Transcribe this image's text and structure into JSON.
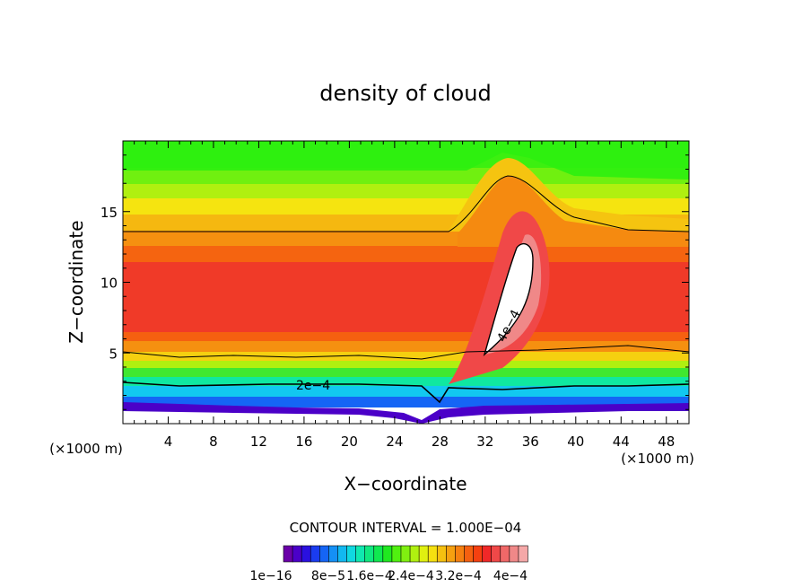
{
  "chart_data": {
    "type": "heatmap",
    "title": "density of cloud",
    "xlabel": "X−coordinate",
    "ylabel": "Z−coordinate",
    "x_unit": "(×1000 m)",
    "y_unit": "(×1000 m)",
    "xlim": [
      0,
      50
    ],
    "ylim": [
      0,
      20
    ],
    "x_ticks": [
      4,
      8,
      12,
      16,
      20,
      24,
      28,
      32,
      36,
      40,
      44,
      48
    ],
    "y_ticks": [
      5,
      10,
      15
    ],
    "contour_interval_text": "CONTOUR INTERVAL = 1.000E−04",
    "contour_labels": [
      {
        "text": "2e−4",
        "x": 17,
        "z": 2.8
      },
      {
        "text": "4e−4",
        "x": 33.5,
        "z": 6.8
      }
    ],
    "colorbar": {
      "min": 1e-16,
      "max": 0.0004,
      "tick_labels": [
        "1e−16",
        "8e−5",
        "1.6e−4",
        "2.4e−4",
        "3.2e−4",
        "4e−4"
      ],
      "colors": [
        "#6a00a8",
        "#4b00c8",
        "#2a10e0",
        "#1a3cf0",
        "#1565f5",
        "#1590f5",
        "#12b8f0",
        "#10d8e0",
        "#10e8b0",
        "#10e880",
        "#10e850",
        "#20e820",
        "#50f010",
        "#80f010",
        "#b0f010",
        "#e0f010",
        "#f5e010",
        "#f5c010",
        "#f5a010",
        "#f58010",
        "#f56010",
        "#f54010",
        "#f02828",
        "#f04848",
        "#f06868",
        "#f08888",
        "#f5a8a8"
      ]
    }
  }
}
